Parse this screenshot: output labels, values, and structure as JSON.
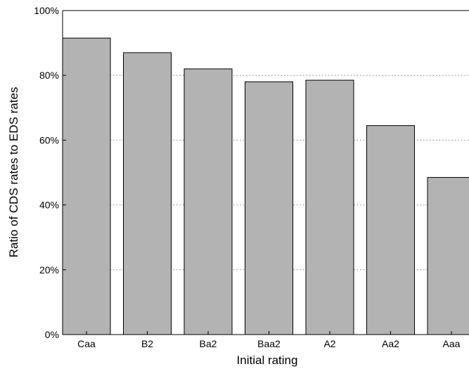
{
  "chart_data": {
    "type": "bar",
    "categories": [
      "Caa",
      "B2",
      "Ba2",
      "Baa2",
      "A2",
      "Aa2",
      "Aaa"
    ],
    "values": [
      91.5,
      87.0,
      82.0,
      78.0,
      78.5,
      64.5,
      48.5
    ],
    "xlabel": "Initial rating",
    "ylabel": "Ratio of CDS rates to EDS rates",
    "ylim": [
      0,
      100
    ],
    "y_ticks": [
      "0%",
      "20%",
      "40%",
      "60%",
      "80%",
      "100%"
    ],
    "grid": "horizontal dotted",
    "bar_color": "#b3b3b3",
    "bar_edge_color": "#000000"
  }
}
